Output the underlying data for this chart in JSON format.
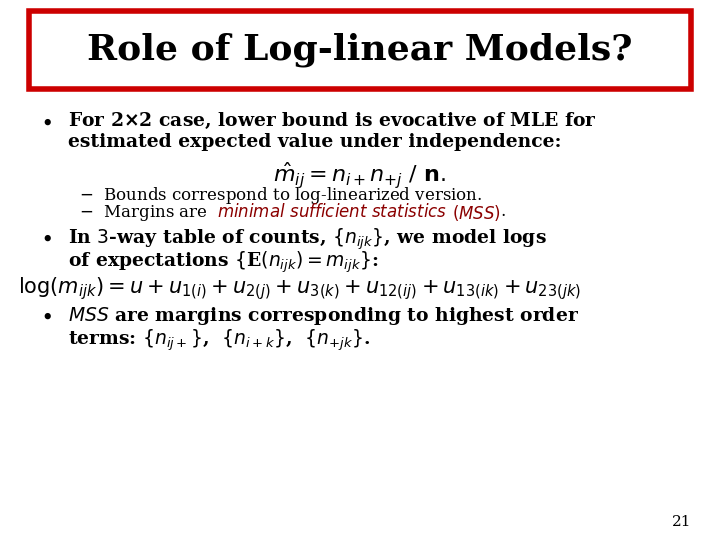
{
  "slide_bg": "#ffffff",
  "title": "Role of Log-linear Models?",
  "title_box_edge": "#cc0000",
  "title_box_fill": "#ffffff",
  "page_number": "21",
  "text_color": "#000000",
  "red_color": "#8b0000",
  "title_fontsize": 26,
  "body_fontsize": 13.5,
  "sub_fontsize": 12,
  "formula_fontsize": 15
}
